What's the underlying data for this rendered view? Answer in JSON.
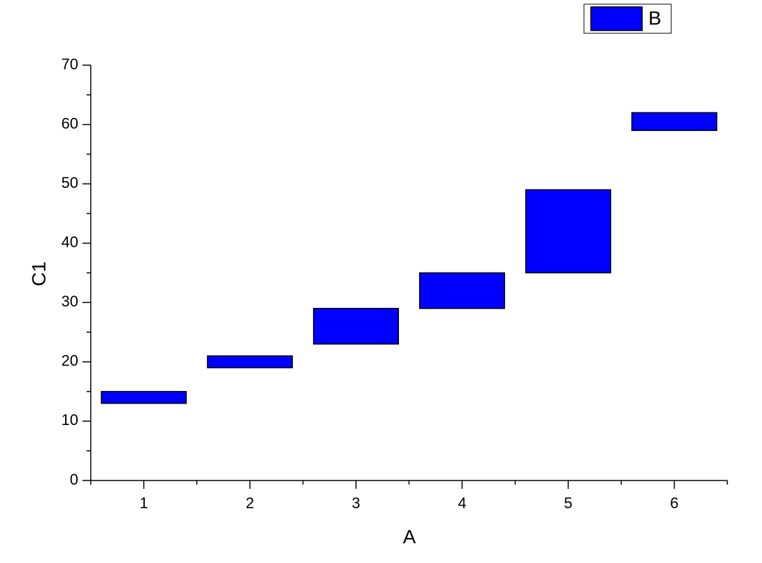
{
  "chart_data": {
    "type": "floating-bar",
    "x_label": "A",
    "y_label": "C1",
    "x": [
      1,
      2,
      3,
      4,
      5,
      6
    ],
    "series": [
      {
        "name": "B",
        "color": "#0000ff",
        "low": [
          13,
          19,
          23,
          29,
          35,
          59
        ],
        "high": [
          15,
          21,
          29,
          35,
          49,
          62
        ]
      }
    ],
    "bar_width": 0.8,
    "xlim": [
      0.5,
      6.5
    ],
    "xticks": [
      1,
      2,
      3,
      4,
      5,
      6
    ],
    "xminorticks": [
      0.5,
      1.5,
      2.5,
      3.5,
      4.5,
      5.5,
      6.5
    ],
    "ylim": [
      0,
      70
    ],
    "yticks": [
      0,
      10,
      20,
      30,
      40,
      50,
      60,
      70
    ],
    "yminorticks": [
      5,
      15,
      25,
      35,
      45,
      55,
      65
    ],
    "grid": false,
    "legend": "top-right"
  }
}
